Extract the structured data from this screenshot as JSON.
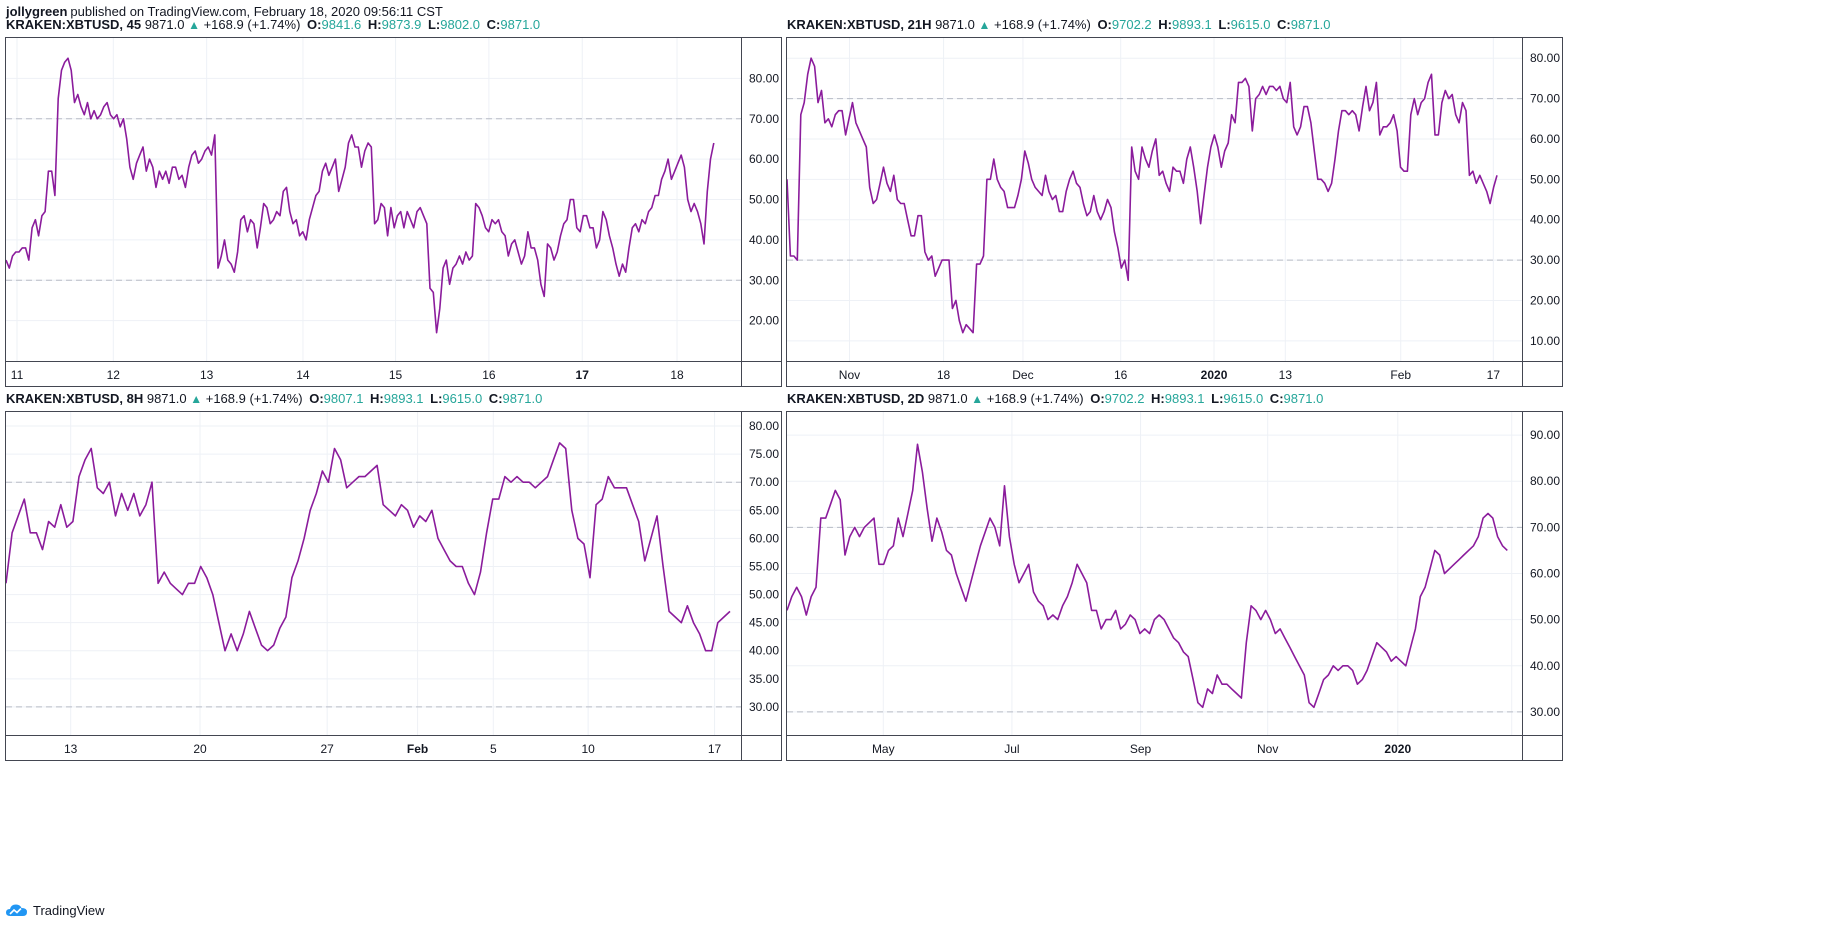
{
  "header": {
    "author": "jollygreen",
    "published_text": "published on TradingView.com, February 18, 2020 09:56:11 CST"
  },
  "footer": {
    "brand": "TradingView"
  },
  "colors": {
    "line": "#8b1c9c",
    "grid": "#eef1f6",
    "level": "#b8bcc6",
    "axis_text": "#131722",
    "ohlc": "#26a69a"
  },
  "chart_data": [
    {
      "type": "line",
      "symbol": "KRAKEN:XBTUSD, 45",
      "last": "9871.0",
      "change": "+168.9 (+1.74%)",
      "ohlc": {
        "O": "9841.6",
        "H": "9873.9",
        "L": "9802.0",
        "C": "9871.0"
      },
      "ylim": [
        10,
        90
      ],
      "yticks": [
        "80.00",
        "70.00",
        "60.00",
        "50.00",
        "40.00",
        "30.00",
        "20.00"
      ],
      "levels": [
        70,
        30
      ],
      "xlim": [
        0,
        100
      ],
      "xticks": [
        {
          "x": 1.5,
          "label": "11",
          "bold": false
        },
        {
          "x": 14.6,
          "label": "12",
          "bold": false
        },
        {
          "x": 27.3,
          "label": "13",
          "bold": false
        },
        {
          "x": 40.4,
          "label": "14",
          "bold": false
        },
        {
          "x": 53.0,
          "label": "15",
          "bold": false
        },
        {
          "x": 65.7,
          "label": "16",
          "bold": false
        },
        {
          "x": 78.4,
          "label": "17",
          "bold": true
        },
        {
          "x": 91.3,
          "label": "18",
          "bold": false
        }
      ],
      "values": [
        35,
        33,
        36,
        37,
        37,
        38,
        38,
        35,
        43,
        45,
        41,
        46,
        47,
        57,
        57,
        51,
        75,
        82,
        84,
        85,
        82,
        74,
        76,
        73,
        71,
        74,
        70,
        72,
        70,
        71,
        73,
        74,
        71,
        70,
        71,
        68,
        70,
        65,
        58,
        55,
        59,
        61,
        63,
        57,
        60,
        58,
        53,
        57,
        55,
        57,
        54,
        58,
        58,
        55,
        56,
        53,
        58,
        61,
        62,
        59,
        60,
        62,
        63,
        61,
        66,
        33,
        36,
        40,
        35,
        34,
        32,
        37,
        45,
        46,
        42,
        45,
        44,
        38,
        43,
        49,
        48,
        44,
        45,
        47,
        46,
        52,
        53,
        47,
        44,
        45,
        41,
        42,
        40,
        45,
        48,
        51,
        52,
        57,
        59,
        56,
        58,
        60,
        52,
        55,
        58,
        64,
        66,
        63,
        63,
        58,
        62,
        64,
        63,
        44,
        45,
        49,
        48,
        41,
        48,
        43,
        46,
        47,
        43,
        47,
        45,
        43,
        47,
        48,
        46,
        44,
        28,
        27,
        17,
        23,
        33,
        35,
        29,
        33,
        34,
        36,
        34,
        37,
        35,
        36,
        49,
        48,
        46,
        43,
        42,
        45,
        44,
        45,
        42,
        41,
        36,
        39,
        40,
        37,
        34,
        36,
        42,
        38,
        38,
        35,
        29,
        26,
        39,
        38,
        35,
        37,
        41,
        44,
        45,
        50,
        50,
        43,
        42,
        46,
        46,
        43,
        43,
        38,
        40,
        47,
        45,
        41,
        38,
        34,
        31,
        34,
        32,
        38,
        43,
        44,
        42,
        45,
        44,
        47,
        48,
        51,
        51,
        55,
        57,
        60,
        55,
        57,
        59,
        61,
        58,
        50,
        47,
        49,
        47,
        44,
        39,
        52,
        60,
        64
      ]
    },
    {
      "type": "line",
      "symbol": "KRAKEN:XBTUSD, 21H",
      "last": "9871.0",
      "change": "+168.9 (+1.74%)",
      "ohlc": {
        "O": "9702.2",
        "H": "9893.1",
        "L": "9615.0",
        "C": "9871.0"
      },
      "ylim": [
        5,
        85
      ],
      "yticks": [
        "80.00",
        "70.00",
        "60.00",
        "50.00",
        "40.00",
        "30.00",
        "20.00",
        "10.00"
      ],
      "levels": [
        70,
        30
      ],
      "xlim": [
        0,
        100
      ],
      "xticks": [
        {
          "x": 8.5,
          "label": "Nov",
          "bold": false
        },
        {
          "x": 21.3,
          "label": "18",
          "bold": false
        },
        {
          "x": 32.1,
          "label": "Dec",
          "bold": false
        },
        {
          "x": 45.4,
          "label": "16",
          "bold": false
        },
        {
          "x": 58.1,
          "label": "2020",
          "bold": true
        },
        {
          "x": 67.8,
          "label": "13",
          "bold": false
        },
        {
          "x": 83.5,
          "label": "Feb",
          "bold": false
        },
        {
          "x": 96.1,
          "label": "17",
          "bold": false
        }
      ],
      "values": [
        50,
        31,
        31,
        30,
        66,
        69,
        76,
        80,
        78,
        69,
        72,
        64,
        65,
        63,
        66,
        67,
        67,
        61,
        65,
        69,
        64,
        62,
        60,
        58,
        48,
        44,
        45,
        49,
        53,
        49,
        47,
        51,
        45,
        44,
        44,
        40,
        36,
        36,
        41,
        41,
        32,
        30,
        31,
        26,
        28,
        30,
        30,
        30,
        18,
        20,
        15,
        12,
        14,
        13,
        12,
        29,
        29,
        31,
        50,
        50,
        55,
        50,
        48,
        47,
        43,
        43,
        43,
        46,
        50,
        57,
        54,
        50,
        48,
        47,
        46,
        51,
        47,
        45,
        46,
        42,
        42,
        47,
        50,
        52,
        49,
        48,
        44,
        41,
        42,
        46,
        42,
        40,
        42,
        45,
        43,
        37,
        33,
        28,
        30,
        25,
        58,
        52,
        50,
        58,
        55,
        53,
        57,
        60,
        51,
        52,
        49,
        47,
        53,
        52,
        52,
        49,
        55,
        58,
        53,
        47,
        39,
        46,
        53,
        58,
        61,
        58,
        53,
        57,
        59,
        66,
        64,
        74,
        74,
        75,
        73,
        62,
        70,
        71,
        73,
        71,
        73,
        73,
        72,
        73,
        70,
        69,
        74,
        63,
        61,
        63,
        68,
        68,
        64,
        57,
        50,
        50,
        49,
        47,
        49,
        55,
        62,
        67,
        67,
        66,
        67,
        66,
        62,
        68,
        73,
        67,
        69,
        74,
        61,
        63,
        63,
        64,
        66,
        62,
        53,
        52,
        52,
        66,
        70,
        66,
        69,
        70,
        74,
        76,
        61,
        61,
        69,
        72,
        70,
        71,
        66,
        64,
        69,
        67,
        51,
        52,
        49,
        51,
        49,
        47,
        44,
        48,
        51
      ]
    },
    {
      "type": "line",
      "symbol": "KRAKEN:XBTUSD, 8H",
      "last": "9871.0",
      "change": "+168.9 (+1.74%)",
      "ohlc": {
        "O": "9807.1",
        "H": "9893.1",
        "L": "9615.0",
        "C": "9871.0"
      },
      "ylim": [
        25,
        82.5
      ],
      "yticks": [
        "80.00",
        "75.00",
        "70.00",
        "65.00",
        "60.00",
        "55.00",
        "50.00",
        "45.00",
        "40.00",
        "35.00",
        "30.00"
      ],
      "levels": [
        70,
        30
      ],
      "xlim": [
        0,
        100
      ],
      "xticks": [
        {
          "x": 8.8,
          "label": "13",
          "bold": false
        },
        {
          "x": 26.4,
          "label": "20",
          "bold": false
        },
        {
          "x": 43.7,
          "label": "27",
          "bold": false
        },
        {
          "x": 56.0,
          "label": "Feb",
          "bold": true
        },
        {
          "x": 66.3,
          "label": "5",
          "bold": false
        },
        {
          "x": 79.2,
          "label": "10",
          "bold": false
        },
        {
          "x": 96.4,
          "label": "17",
          "bold": false
        }
      ],
      "values": [
        52,
        61,
        64,
        67,
        61,
        61,
        58,
        63,
        62,
        66,
        62,
        63,
        71,
        74,
        76,
        69,
        68,
        70,
        64,
        68,
        65,
        68,
        64,
        66,
        70,
        52,
        54,
        52,
        51,
        50,
        52,
        52,
        55,
        53,
        50,
        45,
        40,
        43,
        40,
        43,
        47,
        44,
        41,
        40,
        41,
        44,
        46,
        53,
        56,
        60,
        65,
        68,
        72,
        70,
        76,
        74,
        69,
        70,
        71,
        71,
        72,
        73,
        66,
        65,
        64,
        66,
        65,
        62,
        64,
        63,
        65,
        60,
        58,
        56,
        55,
        55,
        52,
        50,
        54,
        61,
        67,
        67,
        71,
        70,
        71,
        70,
        70,
        69,
        70,
        71,
        74,
        77,
        76,
        65,
        60,
        59,
        53,
        66,
        67,
        71,
        69,
        69,
        69,
        66,
        63,
        56,
        60,
        64,
        55,
        47,
        46,
        45,
        48,
        45,
        43,
        40,
        40,
        45,
        46,
        47
      ]
    },
    {
      "type": "line",
      "symbol": "KRAKEN:XBTUSD, 2D",
      "last": "9871.0",
      "change": "+168.9 (+1.74%)",
      "ohlc": {
        "O": "9702.2",
        "H": "9893.1",
        "L": "9615.0",
        "C": "9871.0"
      },
      "ylim": [
        25,
        95
      ],
      "yticks": [
        "90.00",
        "80.00",
        "70.00",
        "60.00",
        "50.00",
        "40.00",
        "30.00"
      ],
      "levels": [
        70,
        30
      ],
      "xlim": [
        0,
        100
      ],
      "xticks": [
        {
          "x": 13.1,
          "label": "May",
          "bold": false
        },
        {
          "x": 30.6,
          "label": "Jul",
          "bold": false
        },
        {
          "x": 48.1,
          "label": "Sep",
          "bold": false
        },
        {
          "x": 65.4,
          "label": "Nov",
          "bold": false
        },
        {
          "x": 83.1,
          "label": "2020",
          "bold": true
        },
        {
          "x": 98.6,
          "label": "",
          "bold": false
        }
      ],
      "values": [
        52,
        55,
        57,
        55,
        51,
        55,
        57,
        72,
        72,
        75,
        78,
        76,
        64,
        68,
        70,
        68,
        70,
        71,
        72,
        62,
        62,
        65,
        66,
        72,
        68,
        73,
        78,
        88,
        82,
        74,
        67,
        72,
        69,
        65,
        64,
        60,
        57,
        54,
        58,
        62,
        66,
        69,
        72,
        70,
        66,
        79,
        68,
        62,
        58,
        60,
        62,
        56,
        54,
        53,
        50,
        51,
        50,
        53,
        55,
        58,
        62,
        60,
        58,
        52,
        52,
        48,
        50,
        50,
        52,
        48,
        49,
        51,
        50,
        47,
        48,
        47,
        50,
        51,
        50,
        48,
        46,
        45,
        43,
        42,
        37,
        32,
        31,
        35,
        34,
        38,
        36,
        36,
        35,
        34,
        33,
        45,
        53,
        52,
        50,
        52,
        50,
        47,
        48,
        46,
        44,
        42,
        40,
        38,
        32,
        31,
        34,
        37,
        38,
        40,
        39,
        40,
        40,
        39,
        36,
        37,
        39,
        42,
        45,
        44,
        43,
        41,
        42,
        41,
        40,
        44,
        48,
        55,
        57,
        61,
        65,
        64,
        60,
        61,
        62,
        63,
        64,
        65,
        66,
        68,
        72,
        73,
        72,
        68,
        66,
        65
      ]
    }
  ]
}
